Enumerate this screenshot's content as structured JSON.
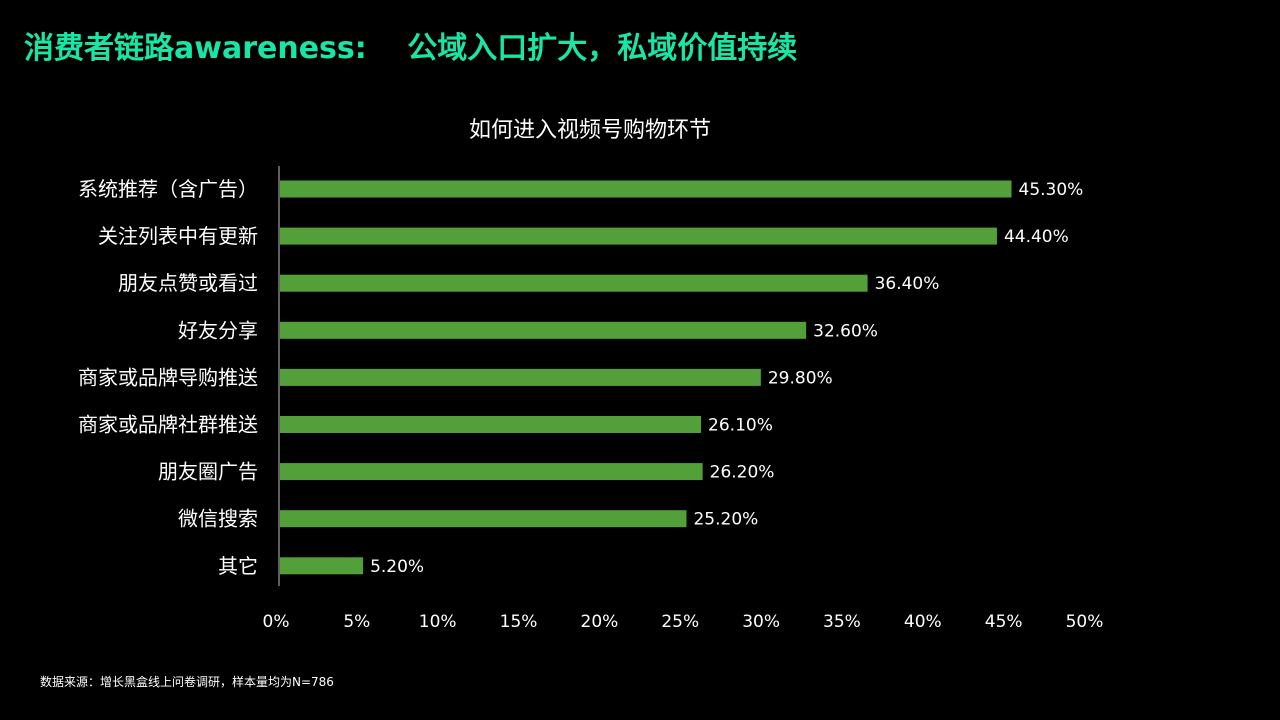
{
  "slide": {
    "title": "消费者链路awareness:　 公域入口扩大，私域价值持续",
    "source": "数据来源：增长黑盒线上问卷调研，样本量均为N=786"
  },
  "colors": {
    "title": "#19e6a6",
    "bar": "#53a03a",
    "axis": "#bfbfbf",
    "text": "#ffffff",
    "background": "#000000"
  },
  "chart_data": {
    "type": "bar",
    "orientation": "horizontal",
    "title": "如何进入视频号购物环节",
    "categories": [
      "系统推荐（含广告）",
      "关注列表中有更新",
      "朋友点赞或看过",
      "好友分享",
      "商家或品牌导购推送",
      "商家或品牌社群推送",
      "朋友圈广告",
      "微信搜索",
      "其它"
    ],
    "values": [
      45.3,
      44.4,
      36.4,
      32.6,
      29.8,
      26.1,
      26.2,
      25.2,
      5.2
    ],
    "data_labels": [
      "45.30%",
      "44.40%",
      "36.40%",
      "32.60%",
      "29.80%",
      "26.10%",
      "26.20%",
      "25.20%",
      "5.20%"
    ],
    "xlim": [
      0,
      50
    ],
    "x_ticks": [
      0,
      5,
      10,
      15,
      20,
      25,
      30,
      35,
      40,
      45,
      50
    ],
    "x_tick_labels": [
      "0%",
      "5%",
      "10%",
      "15%",
      "20%",
      "25%",
      "30%",
      "35%",
      "40%",
      "45%",
      "50%"
    ],
    "grid": false,
    "legend": "none"
  }
}
